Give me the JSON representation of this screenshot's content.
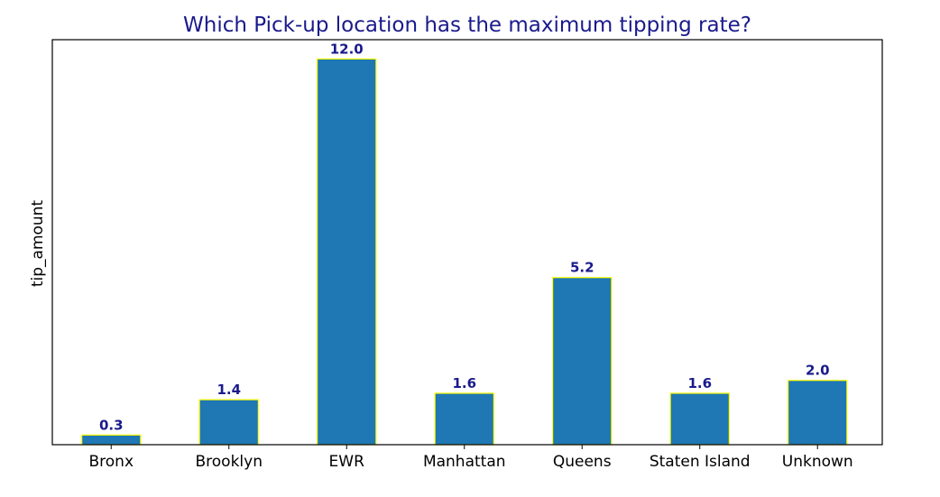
{
  "chart_data": {
    "type": "bar",
    "title": "Which Pick-up location has the maximum tipping rate?",
    "xlabel": "",
    "ylabel": "tip_amount",
    "categories": [
      "Bronx",
      "Brooklyn",
      "EWR",
      "Manhattan",
      "Queens",
      "Staten Island",
      "Unknown"
    ],
    "values": [
      0.3,
      1.4,
      12.0,
      1.6,
      5.2,
      1.6,
      2.0
    ],
    "value_labels": [
      "0.3",
      "1.4",
      "12.0",
      "1.6",
      "5.2",
      "1.6",
      "2.0"
    ],
    "ylim": [
      0,
      12.6
    ],
    "grid": false,
    "y_ticks_shown": false,
    "colors": {
      "bar_fill": "#1f77b4",
      "bar_edge": "#ffff00",
      "title": "#1a1a8c",
      "value_label": "#1a1a8c"
    }
  }
}
